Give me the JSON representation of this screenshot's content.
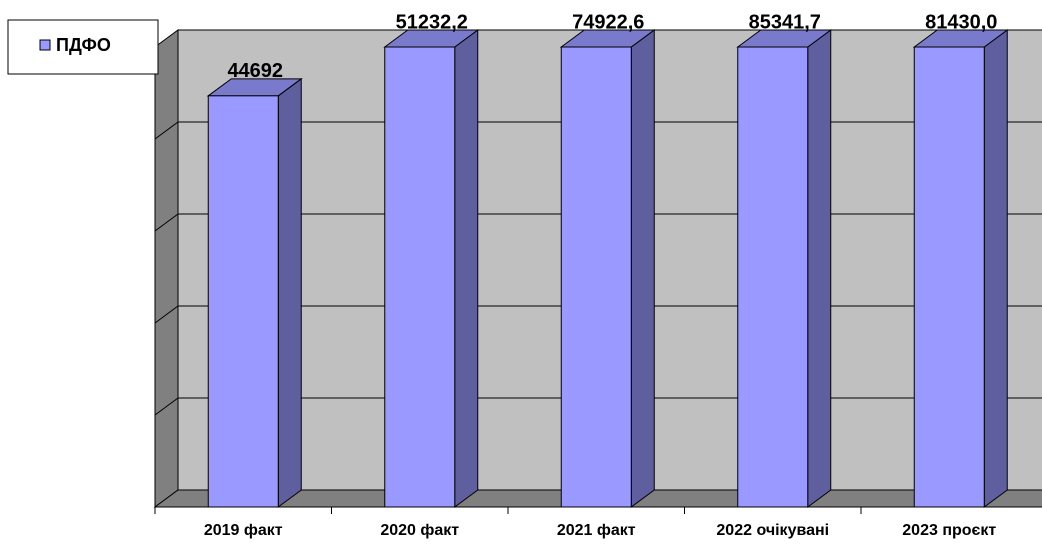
{
  "chart_data": {
    "type": "bar3d",
    "categories": [
      "2019 факт",
      "2020 факт",
      "2021 факт",
      "2022 очікувані",
      "2023 проєкт"
    ],
    "series": [
      {
        "name": "ПДФО",
        "color": "#9999ff",
        "values": [
          44692,
          51232.2,
          74922.6,
          85341.7,
          81430.0
        ],
        "value_labels": [
          "44692",
          "51232,2",
          "74922,6",
          "85341,7",
          "81430,0"
        ]
      }
    ],
    "ylim": [
      0,
      50000
    ],
    "yticks": [
      0,
      10000,
      20000,
      30000,
      40000,
      50000
    ],
    "grid": true,
    "legend": "top-left"
  }
}
